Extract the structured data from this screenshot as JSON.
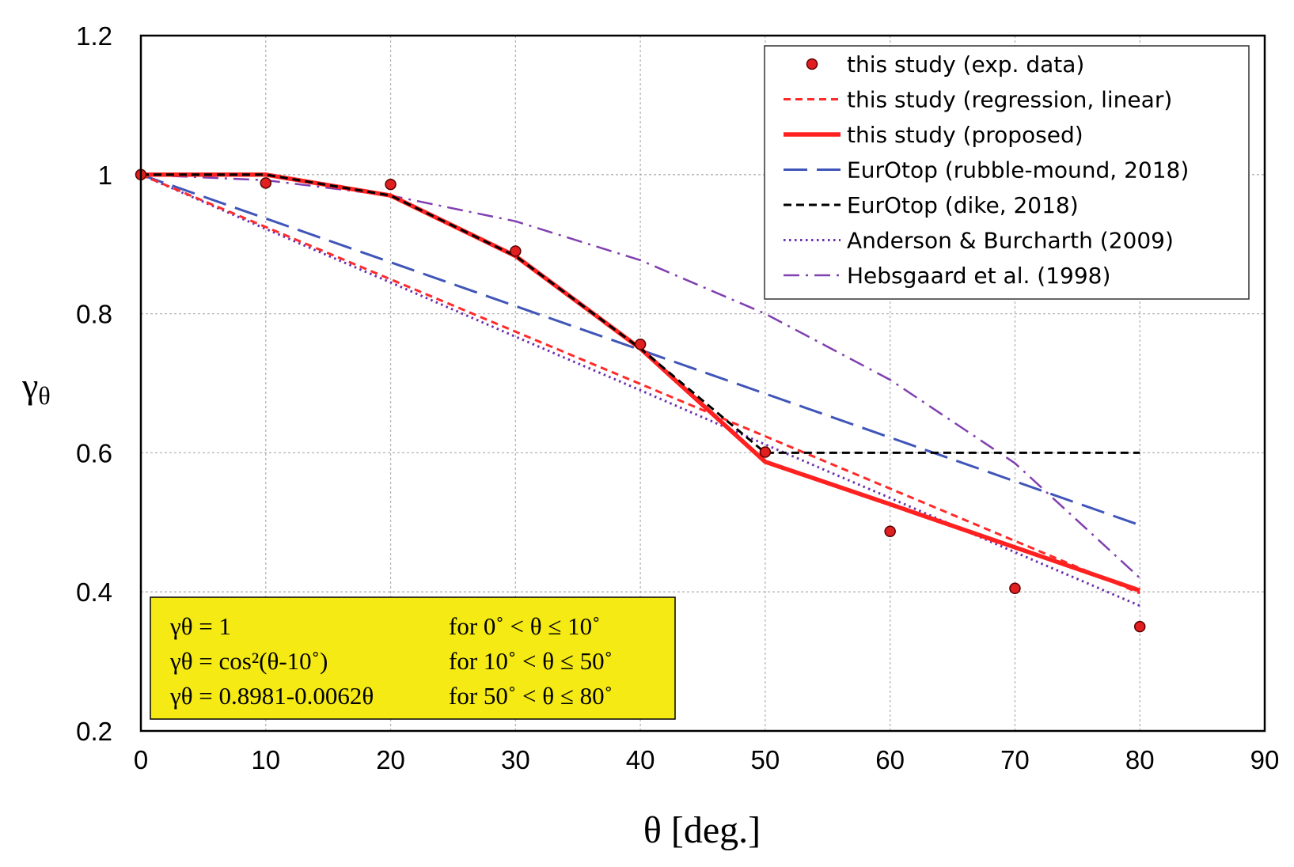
{
  "chart_data": {
    "type": "line",
    "xlabel": "θ [deg.]",
    "ylabel": "γθ",
    "xlim": [
      0,
      90
    ],
    "ylim": [
      0.2,
      1.2
    ],
    "x_ticks": [
      0,
      10,
      20,
      30,
      40,
      50,
      60,
      70,
      80,
      90
    ],
    "x_tick_labels": [
      "0",
      "10",
      "20",
      "30",
      "40",
      "50",
      "60",
      "70",
      "80",
      "90"
    ],
    "y_ticks": [
      0.2,
      0.4,
      0.6,
      0.8,
      1.0,
      1.2
    ],
    "y_tick_labels": [
      "0.2",
      "0.4",
      "0.6",
      "0.8",
      "1",
      "1.2"
    ],
    "grid": true,
    "legend_position": "top-right",
    "series": [
      {
        "name": "this study (exp. data)",
        "style": "markers",
        "color": "#e02020",
        "x": [
          0,
          10,
          20,
          30,
          40,
          50,
          60,
          70,
          80
        ],
        "y": [
          1.0,
          0.988,
          0.986,
          0.89,
          0.756,
          0.601,
          0.487,
          0.405,
          0.35
        ]
      },
      {
        "name": "this study (regression, linear)",
        "style": "short-dash",
        "color": "#ff2a2a",
        "x": [
          0,
          80
        ],
        "y": [
          1.0,
          0.398
        ]
      },
      {
        "name": "this study (proposed)",
        "style": "solid-thick",
        "color": "#ff2020",
        "x": [
          0,
          10,
          20,
          30,
          40,
          50,
          60,
          70,
          80
        ],
        "y": [
          1.0,
          1.0,
          0.97,
          0.883,
          0.75,
          0.587,
          0.526,
          0.464,
          0.402
        ]
      },
      {
        "name": "EurOtop (rubble-mound, 2018)",
        "style": "long-dash",
        "color": "#4055b8",
        "x": [
          0,
          80
        ],
        "y": [
          1.0,
          0.496
        ]
      },
      {
        "name": "EurOtop (dike, 2018)",
        "style": "dash",
        "color": "#000000",
        "x": [
          0,
          10,
          20,
          30,
          40,
          50,
          80
        ],
        "y": [
          1.0,
          1.0,
          0.97,
          0.883,
          0.75,
          0.6,
          0.6
        ]
      },
      {
        "name": "Anderson & Burcharth (2009)",
        "style": "dotted",
        "color": "#6a2fae",
        "x": [
          0,
          10,
          20,
          30,
          40,
          50,
          60,
          70,
          80
        ],
        "y": [
          1.0,
          0.922,
          0.845,
          0.767,
          0.69,
          0.612,
          0.535,
          0.457,
          0.38
        ]
      },
      {
        "name": "Hebsgaard et al. (1998)",
        "style": "dash-dot",
        "color": "#8040b0",
        "x": [
          0,
          10,
          20,
          30,
          40,
          50,
          60,
          70,
          80
        ],
        "y": [
          1.0,
          0.992,
          0.97,
          0.933,
          0.877,
          0.8,
          0.705,
          0.585,
          0.42
        ]
      }
    ],
    "annotation": {
      "lines": [
        {
          "formula": "γθ = 1",
          "range": "for   0˚ < θ ≤ 10˚"
        },
        {
          "formula": "γθ = cos²(θ-10˚)",
          "range": "for 10˚ < θ ≤ 50˚"
        },
        {
          "formula": "γθ = 0.8981-0.0062θ",
          "range": "for 50˚ < θ ≤ 80˚"
        }
      ],
      "background": "#f5ea14"
    }
  }
}
